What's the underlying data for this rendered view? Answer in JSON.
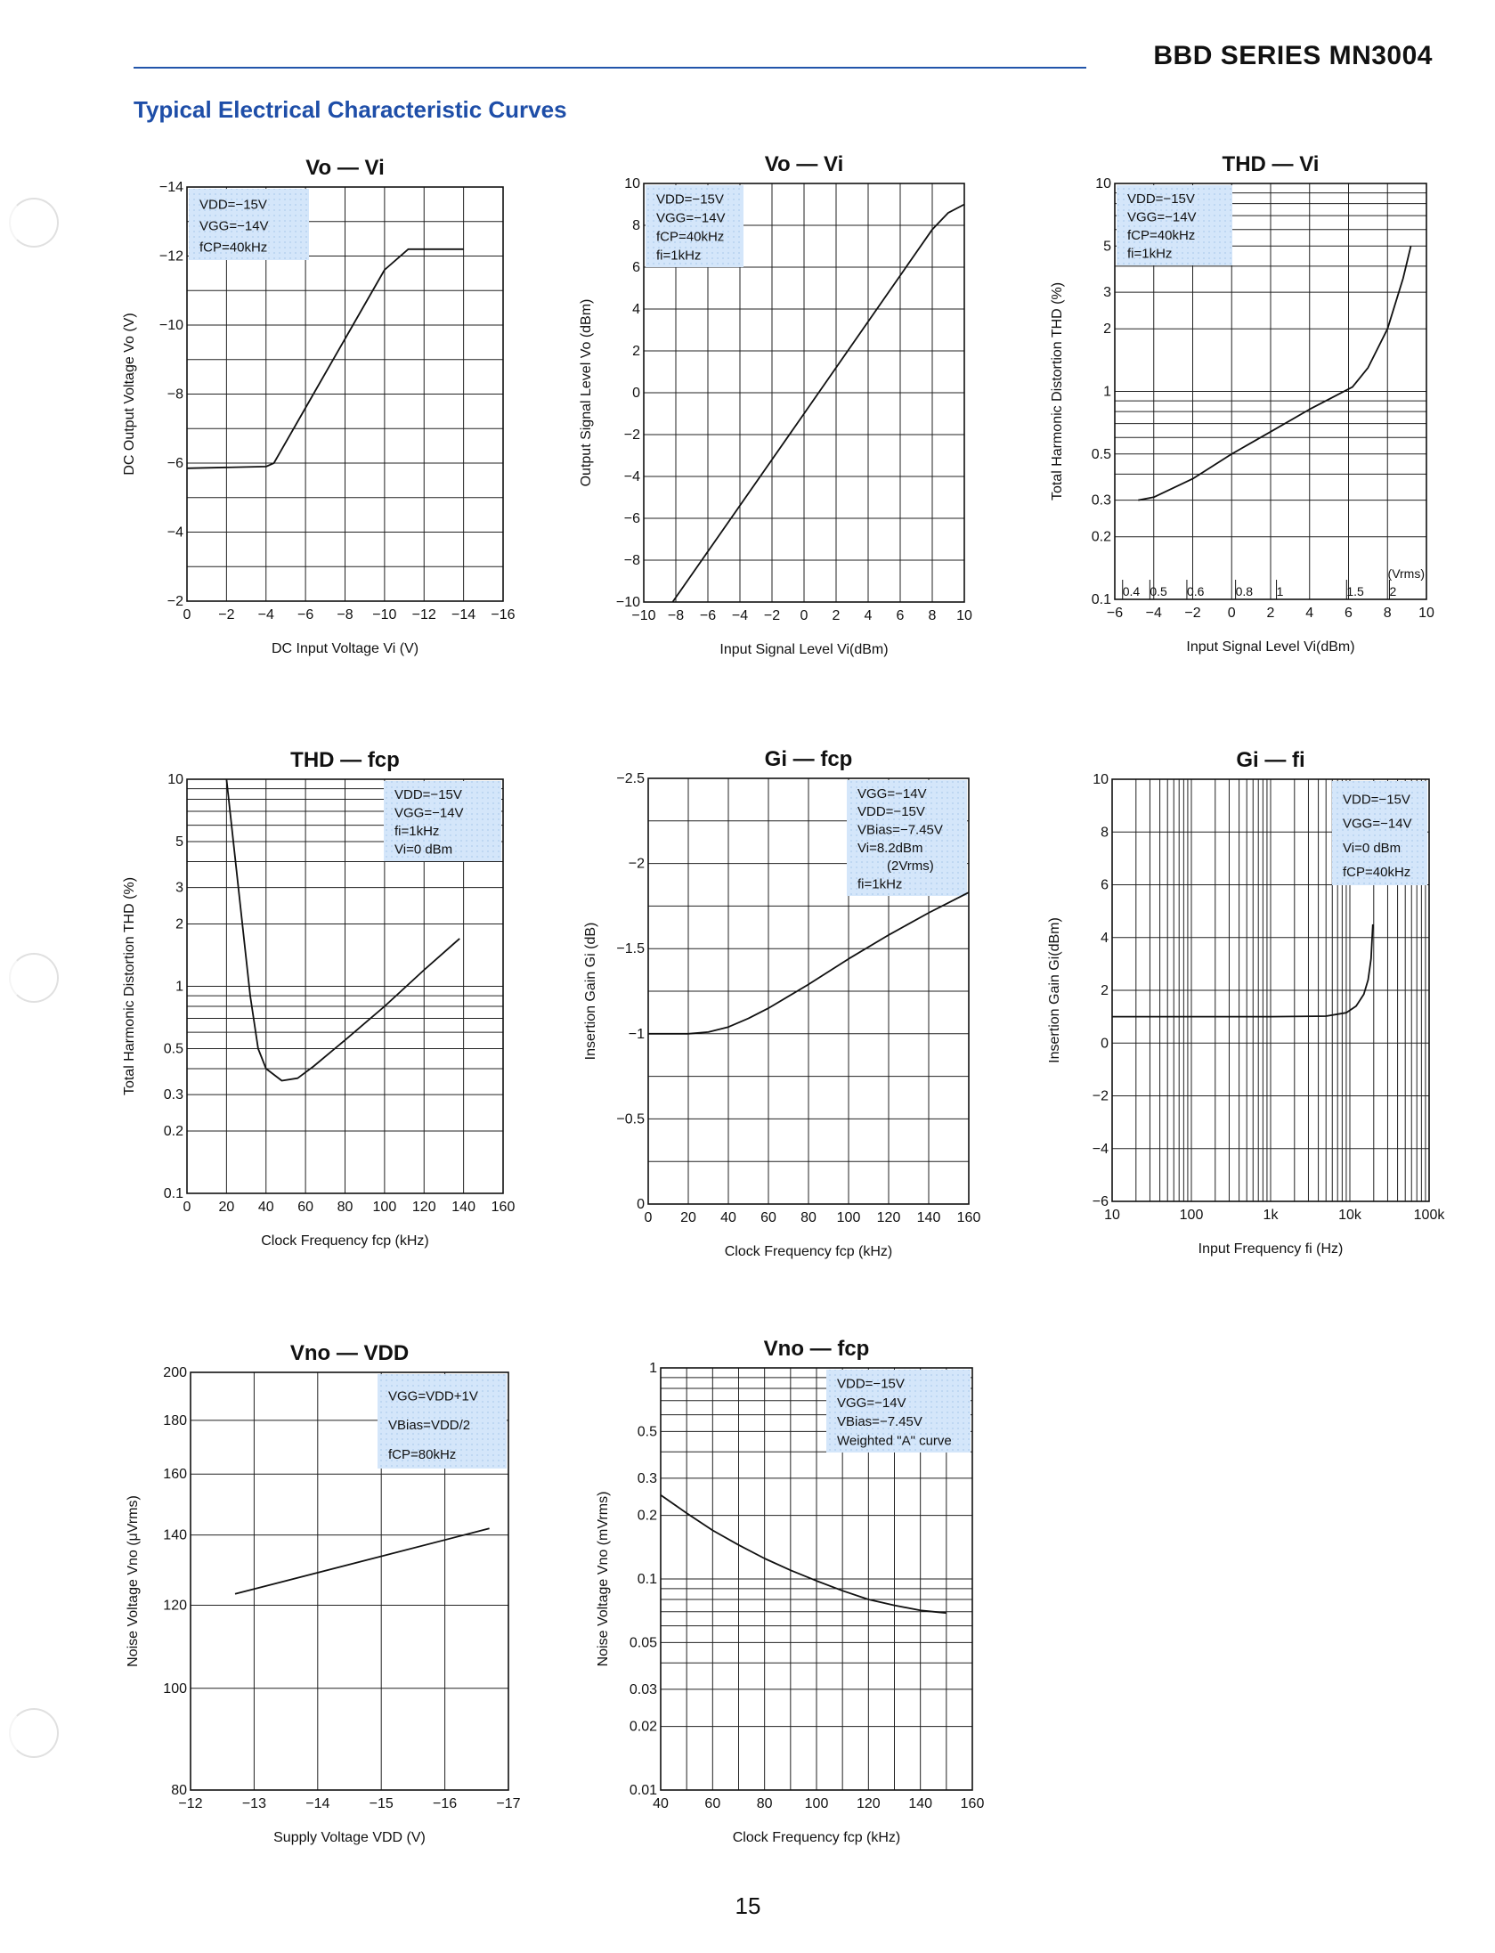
{
  "header": {
    "series_title": "BBD SERIES MN3004"
  },
  "section_title": "Typical Electrical Characteristic Curves",
  "page_number": "15",
  "chart_data": [
    {
      "id": "vo_vi_dc",
      "type": "line",
      "title": "Vo — Vi",
      "xlabel": "DC Input Voltage   Vi  (V)",
      "ylabel": "DC Output Voltage   Vo  (V)",
      "xscale": "linear",
      "yscale": "linear",
      "xlim": [
        0,
        -16
      ],
      "ylim": [
        -2,
        -14
      ],
      "xticks": [
        0,
        -2,
        -4,
        -6,
        -8,
        -10,
        -12,
        -14,
        -16
      ],
      "xtick_labels": [
        "0",
        "−2",
        "−4",
        "−6",
        "−8",
        "−10",
        "−12",
        "−14",
        "−16"
      ],
      "yticks": [
        -2,
        -4,
        -6,
        -8,
        -10,
        -12,
        -14
      ],
      "ytick_labels": [
        "−2",
        "−4",
        "−6",
        "−8",
        "−10",
        "−12",
        "−14"
      ],
      "grid_x": [
        -2,
        -4,
        -6,
        -8,
        -10,
        -12,
        -14
      ],
      "grid_y": [
        -3,
        -4,
        -5,
        -6,
        -7,
        -8,
        -9,
        -10,
        -11,
        -12,
        -13
      ],
      "legend_box": "top-left",
      "legend": [
        "VDD=−15V",
        "VGG=−14V",
        "fCP=40kHz"
      ],
      "series": [
        {
          "name": "Vo",
          "x": [
            0,
            -4,
            -4.4,
            -6,
            -8,
            -10,
            -11.2,
            -14
          ],
          "y": [
            -5.85,
            -5.9,
            -6.0,
            -7.6,
            -9.6,
            -11.6,
            -12.2,
            -12.2
          ]
        }
      ]
    },
    {
      "id": "vo_vi_ac",
      "type": "line",
      "title": "Vo — Vi",
      "xlabel": "Input Signal Level   Vi(dBm)",
      "ylabel": "Output Signal Level Vo (dBm)",
      "xscale": "linear",
      "yscale": "linear",
      "xlim": [
        -10,
        10
      ],
      "ylim": [
        -10,
        10
      ],
      "xticks": [
        -10,
        -8,
        -6,
        -4,
        -2,
        0,
        2,
        4,
        6,
        8,
        10
      ],
      "xtick_labels": [
        "−10",
        "−8",
        "−6",
        "−4",
        "−2",
        "0",
        "2",
        "4",
        "6",
        "8",
        "10"
      ],
      "yticks": [
        -10,
        -8,
        -6,
        -4,
        -2,
        0,
        2,
        4,
        6,
        8,
        10
      ],
      "ytick_labels": [
        "−10",
        "−8",
        "−6",
        "−4",
        "−2",
        "0",
        "2",
        "4",
        "6",
        "8",
        "10"
      ],
      "grid_x": [
        -8,
        -6,
        -4,
        -2,
        0,
        2,
        4,
        6,
        8
      ],
      "grid_y": [
        -8,
        -6,
        -4,
        -2,
        0,
        2,
        4,
        6,
        8
      ],
      "legend_box": "top-left",
      "legend": [
        "VDD=−15V",
        "VGG=−14V",
        "fCP=40kHz",
        "fi=1kHz"
      ],
      "series": [
        {
          "name": "Vo",
          "x": [
            -8.2,
            0,
            8,
            9,
            10
          ],
          "y": [
            -10,
            -1.0,
            7.8,
            8.6,
            9.0
          ]
        }
      ]
    },
    {
      "id": "thd_vi",
      "type": "line",
      "title": "THD — Vi",
      "xlabel": "Input Signal Level   Vi(dBm)",
      "ylabel": "Total Harmonic Distortion   THD  (%)",
      "xscale": "linear",
      "yscale": "log",
      "xlim": [
        -6,
        10
      ],
      "ylim": [
        0.1,
        10
      ],
      "xticks": [
        -6,
        -4,
        -2,
        0,
        2,
        4,
        6,
        8,
        10
      ],
      "xtick_labels": [
        "−6",
        "−4",
        "−2",
        "0",
        "2",
        "4",
        "6",
        "8",
        "10"
      ],
      "yticks": [
        0.1,
        0.2,
        0.3,
        0.5,
        1,
        2,
        3,
        5,
        10
      ],
      "ytick_labels": [
        "0.1",
        "0.2",
        "0.3",
        "0.5",
        "1",
        "2",
        "3",
        "5",
        "10"
      ],
      "grid_x": [
        -4,
        -2,
        0,
        2,
        4,
        6,
        8
      ],
      "grid_y": [
        0.2,
        0.3,
        0.4,
        0.5,
        0.6,
        0.7,
        0.8,
        0.9,
        1,
        2,
        3,
        4,
        5,
        6,
        7,
        8,
        9
      ],
      "top_axis_label": "(Vrms)",
      "top_axis_ticks": [
        "0.4",
        "0.5",
        "0.6",
        "0.8",
        "1",
        "1.5",
        "2"
      ],
      "legend_box": "top-left",
      "legend": [
        "VDD=−15V",
        "VGG=−14V",
        "fCP=40kHz",
        "fi=1kHz"
      ],
      "series": [
        {
          "name": "THD",
          "x": [
            -4.8,
            -4,
            -2,
            0,
            2,
            4,
            6.2,
            7,
            8,
            8.8,
            9.2
          ],
          "y": [
            0.3,
            0.31,
            0.38,
            0.5,
            0.64,
            0.82,
            1.05,
            1.3,
            2.0,
            3.5,
            5.0
          ]
        }
      ]
    },
    {
      "id": "thd_fcp",
      "type": "line",
      "title": "THD — fcp",
      "xlabel": "Clock Frequency   fcp (kHz)",
      "ylabel": "Total Harmonic Distortion   THD  (%)",
      "xscale": "linear",
      "yscale": "log",
      "xlim": [
        0,
        160
      ],
      "ylim": [
        0.1,
        10
      ],
      "xticks": [
        0,
        20,
        40,
        60,
        80,
        100,
        120,
        140,
        160
      ],
      "xtick_labels": [
        "0",
        "20",
        "40",
        "60",
        "80",
        "100",
        "120",
        "140",
        "160"
      ],
      "yticks": [
        0.1,
        0.2,
        0.3,
        0.5,
        1,
        2,
        3,
        5,
        10
      ],
      "ytick_labels": [
        "0.1",
        "0.2",
        "0.3",
        "0.5",
        "1",
        "2",
        "3",
        "5",
        "10"
      ],
      "grid_x": [
        20,
        40,
        60,
        80,
        100,
        120,
        140
      ],
      "grid_y": [
        0.2,
        0.3,
        0.4,
        0.5,
        0.6,
        0.7,
        0.8,
        0.9,
        1,
        2,
        3,
        4,
        5,
        6,
        7,
        8,
        9
      ],
      "legend_box": "top-right",
      "legend": [
        "VDD=−15V",
        "VGG=−14V",
        "fi=1kHz",
        "Vi=0 dBm"
      ],
      "series": [
        {
          "name": "THD",
          "x": [
            20,
            26,
            32,
            36,
            40,
            48,
            56,
            64,
            80,
            100,
            120,
            138
          ],
          "y": [
            10,
            3.0,
            0.9,
            0.5,
            0.4,
            0.35,
            0.36,
            0.41,
            0.55,
            0.8,
            1.2,
            1.7
          ]
        }
      ]
    },
    {
      "id": "gi_fcp",
      "type": "line",
      "title": "Gi — fcp",
      "xlabel": "Clock Frequency   fcp (kHz)",
      "ylabel": "Insertion Gain   Gi  (dB)",
      "xscale": "linear",
      "yscale": "linear",
      "xlim": [
        0,
        160
      ],
      "ylim": [
        0,
        -2.5
      ],
      "xticks": [
        0,
        20,
        40,
        60,
        80,
        100,
        120,
        140,
        160
      ],
      "xtick_labels": [
        "0",
        "20",
        "40",
        "60",
        "80",
        "100",
        "120",
        "140",
        "160"
      ],
      "yticks": [
        0,
        -0.5,
        -1,
        -1.5,
        -2,
        -2.5
      ],
      "ytick_labels": [
        "0",
        "−0.5",
        "−1",
        "−1.5",
        "−2",
        "−2.5"
      ],
      "grid_x": [
        20,
        40,
        60,
        80,
        100,
        120,
        140
      ],
      "grid_y": [
        -0.25,
        -0.5,
        -0.75,
        -1,
        -1.25,
        -1.5,
        -1.75,
        -2,
        -2.25
      ],
      "legend_box": "top-right",
      "legend": [
        "VGG=−14V",
        "VDD=−15V",
        "VBias=−7.45V",
        "Vi=8.2dBm",
        "(2Vrms)",
        "fi=1kHz"
      ],
      "series": [
        {
          "name": "Gi",
          "x": [
            0,
            20,
            30,
            40,
            50,
            60,
            80,
            100,
            120,
            140,
            160
          ],
          "y": [
            -1.0,
            -1.0,
            -1.01,
            -1.04,
            -1.09,
            -1.15,
            -1.29,
            -1.44,
            -1.58,
            -1.71,
            -1.83
          ]
        }
      ]
    },
    {
      "id": "gi_fi",
      "type": "line",
      "title": "Gi — fi",
      "xlabel": "Input Frequency   fi  (Hz)",
      "ylabel": "Insertion Gain   Gi(dBm)",
      "xscale": "log",
      "yscale": "linear",
      "xlim": [
        10,
        100000
      ],
      "ylim": [
        -6,
        10
      ],
      "xticks": [
        10,
        100,
        1000,
        10000,
        100000
      ],
      "xtick_labels": [
        "10",
        "100",
        "1k",
        "10k",
        "100k"
      ],
      "yticks": [
        -6,
        -4,
        -2,
        0,
        2,
        4,
        6,
        8,
        10
      ],
      "ytick_labels": [
        "−6",
        "−4",
        "−2",
        "0",
        "2",
        "4",
        "6",
        "8",
        "10"
      ],
      "grid_y": [
        -4,
        -2,
        0,
        2,
        4,
        6,
        8
      ],
      "legend_box": "top-right",
      "legend": [
        "VDD=−15V",
        "VGG=−14V",
        "Vi=0 dBm",
        "fCP=40kHz"
      ],
      "series": [
        {
          "name": "Gi",
          "x": [
            10,
            100,
            1000,
            5000,
            9000,
            12000,
            15000,
            17000,
            18500,
            19500
          ],
          "y": [
            1.0,
            1.0,
            1.0,
            1.02,
            1.15,
            1.4,
            1.85,
            2.4,
            3.2,
            4.5
          ]
        }
      ]
    },
    {
      "id": "vno_vdd",
      "type": "line",
      "title": "Vno — VDD",
      "xlabel": "Supply Voltage  VDD  (V)",
      "ylabel": "Noise Voltage   Vno  (μVrms)",
      "xscale": "linear",
      "yscale": "log",
      "xlim": [
        -12,
        -17
      ],
      "ylim": [
        80,
        200
      ],
      "xticks": [
        -12,
        -13,
        -14,
        -15,
        -16,
        -17
      ],
      "xtick_labels": [
        "−12",
        "−13",
        "−14",
        "−15",
        "−16",
        "−17"
      ],
      "yticks": [
        80,
        100,
        120,
        140,
        160,
        180,
        200
      ],
      "ytick_labels": [
        "80",
        "100",
        "120",
        "140",
        "160",
        "180",
        "200"
      ],
      "grid_x": [
        -13,
        -14,
        -15,
        -16
      ],
      "grid_y": [
        100,
        120,
        140,
        160,
        180
      ],
      "legend_box": "top-right",
      "legend": [
        "VGG=VDD+1V",
        "VBias=VDD/2",
        "fCP=80kHz"
      ],
      "series": [
        {
          "name": "Vno",
          "x": [
            -12.7,
            -16.7
          ],
          "y": [
            123,
            142
          ]
        }
      ]
    },
    {
      "id": "vno_fcp",
      "type": "line",
      "title": "Vno — fcp",
      "xlabel": "Clock Frequency   fcp (kHz)",
      "ylabel": "Noise Voltage   Vno  (mVrms)",
      "xscale": "linear",
      "yscale": "log",
      "xlim": [
        40,
        160
      ],
      "ylim": [
        0.01,
        1
      ],
      "xticks": [
        40,
        60,
        80,
        100,
        120,
        140,
        160
      ],
      "xtick_labels": [
        "40",
        "60",
        "80",
        "100",
        "120",
        "140",
        "160"
      ],
      "yticks": [
        0.01,
        0.02,
        0.03,
        0.05,
        0.1,
        0.2,
        0.3,
        0.5,
        1
      ],
      "ytick_labels": [
        "0.01",
        "0.02",
        "0.03",
        "0.05",
        "0.1",
        "0.2",
        "0.3",
        "0.5",
        "1"
      ],
      "grid_x": [
        50,
        60,
        70,
        80,
        90,
        100,
        110,
        120,
        130,
        140,
        150
      ],
      "grid_y": [
        0.02,
        0.03,
        0.04,
        0.05,
        0.06,
        0.07,
        0.08,
        0.09,
        0.1,
        0.2,
        0.3,
        0.4,
        0.5,
        0.6,
        0.7,
        0.8,
        0.9
      ],
      "legend_box": "top-right",
      "legend": [
        "VDD=−15V",
        "VGG=−14V",
        "VBias=−7.45V",
        "Weighted \"A\" curve"
      ],
      "series": [
        {
          "name": "Vno",
          "x": [
            40,
            50,
            60,
            70,
            80,
            90,
            100,
            110,
            120,
            130,
            140,
            150
          ],
          "y": [
            0.25,
            0.205,
            0.17,
            0.145,
            0.125,
            0.11,
            0.098,
            0.088,
            0.08,
            0.075,
            0.071,
            0.069
          ]
        }
      ]
    }
  ]
}
